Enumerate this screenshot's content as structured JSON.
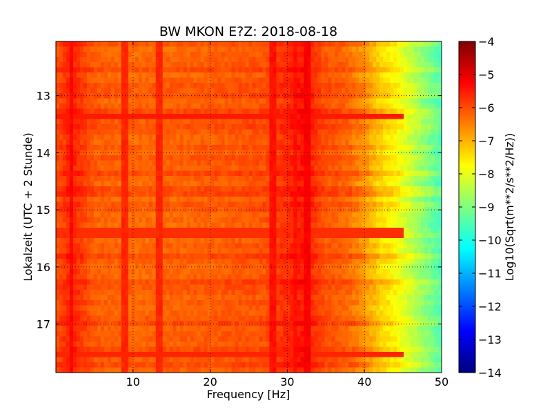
{
  "chart_data": {
    "type": "heatmap",
    "title": "BW MKON E?Z: 2018-08-18",
    "xlabel": "Frequency [Hz]",
    "ylabel": "Lokalzeit (UTC + 2 Stunde)",
    "xlim": [
      0,
      50
    ],
    "ylim": [
      12.05,
      17.85
    ],
    "y_inverted": true,
    "grid": true,
    "x_ticks": [
      10,
      20,
      30,
      40,
      50
    ],
    "x_tick_labels": [
      "10",
      "20",
      "30",
      "40",
      "50"
    ],
    "y_ticks": [
      13,
      14,
      15,
      16,
      17
    ],
    "y_tick_labels": [
      "13",
      "14",
      "15",
      "16",
      "17"
    ],
    "colorbar": {
      "label": "Log10(Sqrt(m**2/s**2/Hz))",
      "range": [
        -14,
        -4
      ],
      "ticks": [
        -4,
        -5,
        -6,
        -7,
        -8,
        -9,
        -10,
        -11,
        -12,
        -13,
        -14
      ],
      "tick_labels": [
        "−4",
        "−5",
        "−6",
        "−7",
        "−8",
        "−9",
        "−10",
        "−11",
        "−12",
        "−13",
        "−14"
      ],
      "colormap": "jet",
      "colormap_stops": [
        "#00007f",
        "#0000ff",
        "#007fff",
        "#00ffff",
        "#7fff7f",
        "#ffff00",
        "#ff7f00",
        "#ff0000",
        "#7f0000"
      ]
    },
    "base_level_profile": {
      "frequency_hz": [
        0,
        2,
        5,
        10,
        20,
        27,
        30,
        32,
        35,
        38,
        40,
        42,
        44,
        46,
        48,
        50
      ],
      "log10_psd": [
        -6.0,
        -5.5,
        -6.1,
        -6.2,
        -6.1,
        -6.0,
        -5.6,
        -5.4,
        -6.0,
        -6.2,
        -6.6,
        -7.2,
        -7.6,
        -8.2,
        -8.8,
        -9.4
      ]
    },
    "features": [
      {
        "kind": "vertical-band",
        "frequency_hz": 2.0,
        "log10_psd": -5.3
      },
      {
        "kind": "vertical-band",
        "frequency_hz": 9.0,
        "log10_psd": -5.6
      },
      {
        "kind": "vertical-band",
        "frequency_hz": 13.5,
        "log10_psd": -5.6
      },
      {
        "kind": "vertical-band",
        "frequency_hz": 28.0,
        "log10_psd": -5.4
      },
      {
        "kind": "vertical-band",
        "frequency_hz": 31.0,
        "log10_psd": -5.4
      },
      {
        "kind": "vertical-band",
        "frequency_hz": 32.5,
        "log10_psd": -5.2
      },
      {
        "kind": "horizontal-band",
        "time_h": 13.4,
        "log10_psd": -5.5
      },
      {
        "kind": "horizontal-band",
        "time_h": 15.4,
        "log10_psd": -5.7
      },
      {
        "kind": "horizontal-band",
        "time_h": 17.5,
        "log10_psd": -5.6
      }
    ]
  }
}
